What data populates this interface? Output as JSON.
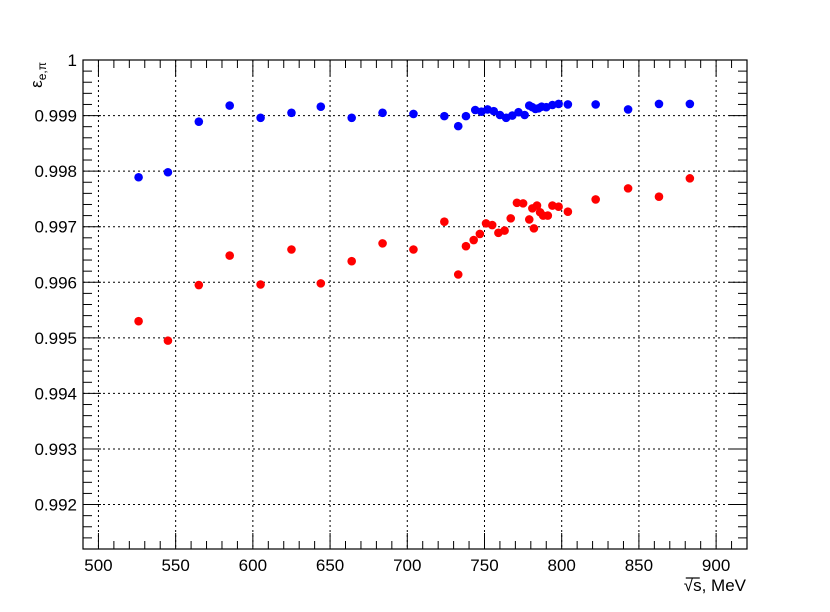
{
  "chart_data": {
    "type": "scatter",
    "title": "",
    "xlabel": "√s, MeV",
    "ylabel": "ε",
    "ylabel_subscript": "e,π",
    "xlim": [
      490,
      920
    ],
    "ylim": [
      0.9912,
      1.0
    ],
    "x_ticks": [
      500,
      550,
      600,
      650,
      700,
      750,
      800,
      850,
      900
    ],
    "x_tick_labels": [
      "500",
      "550",
      "600",
      "650",
      "700",
      "750",
      "800",
      "850",
      "900"
    ],
    "y_ticks": [
      0.992,
      0.993,
      0.994,
      0.995,
      0.996,
      0.997,
      0.998,
      0.999,
      1.0
    ],
    "y_tick_labels": [
      "0.992",
      "0.993",
      "0.994",
      "0.995",
      "0.996",
      "0.997",
      "0.998",
      "0.999",
      "1"
    ],
    "grid": true,
    "colors": {
      "blue": "#0000ff",
      "red": "#ff0000"
    },
    "series": [
      {
        "color": "#0000ff",
        "points": [
          [
            526,
            0.99789
          ],
          [
            545,
            0.99798
          ],
          [
            565,
            0.99889
          ],
          [
            585,
            0.99918
          ],
          [
            605,
            0.99896
          ],
          [
            625,
            0.99905
          ],
          [
            644,
            0.99916
          ],
          [
            664,
            0.99896
          ],
          [
            684,
            0.99905
          ],
          [
            704,
            0.99903
          ],
          [
            724,
            0.99899
          ],
          [
            733,
            0.99881
          ],
          [
            738,
            0.99899
          ],
          [
            744,
            0.9991
          ],
          [
            748,
            0.99907
          ],
          [
            752,
            0.99911
          ],
          [
            756,
            0.99908
          ],
          [
            760,
            0.99901
          ],
          [
            764,
            0.99896
          ],
          [
            768,
            0.999
          ],
          [
            772,
            0.99906
          ],
          [
            776,
            0.99901
          ],
          [
            779,
            0.99918
          ],
          [
            781,
            0.99915
          ],
          [
            783,
            0.99912
          ],
          [
            785,
            0.99913
          ],
          [
            787,
            0.99916
          ],
          [
            790,
            0.99915
          ],
          [
            794,
            0.99919
          ],
          [
            798,
            0.99921
          ],
          [
            804,
            0.9992
          ],
          [
            822,
            0.9992
          ],
          [
            843,
            0.99911
          ],
          [
            863,
            0.99921
          ],
          [
            883,
            0.99921
          ]
        ]
      },
      {
        "color": "#ff0000",
        "points": [
          [
            526,
            0.9953
          ],
          [
            545,
            0.99495
          ],
          [
            565,
            0.99595
          ],
          [
            585,
            0.99648
          ],
          [
            605,
            0.99596
          ],
          [
            625,
            0.99659
          ],
          [
            644,
            0.99598
          ],
          [
            664,
            0.99638
          ],
          [
            684,
            0.9967
          ],
          [
            704,
            0.99659
          ],
          [
            724,
            0.99709
          ],
          [
            733,
            0.99614
          ],
          [
            738,
            0.99665
          ],
          [
            743,
            0.99676
          ],
          [
            747,
            0.99687
          ],
          [
            751,
            0.99706
          ],
          [
            755,
            0.99703
          ],
          [
            759,
            0.99689
          ],
          [
            763,
            0.99693
          ],
          [
            767,
            0.99715
          ],
          [
            771,
            0.99743
          ],
          [
            775,
            0.99742
          ],
          [
            779,
            0.99713
          ],
          [
            781,
            0.99733
          ],
          [
            782,
            0.99697
          ],
          [
            784,
            0.99738
          ],
          [
            786,
            0.99726
          ],
          [
            788,
            0.9972
          ],
          [
            791,
            0.9972
          ],
          [
            794,
            0.99738
          ],
          [
            798,
            0.99736
          ],
          [
            804,
            0.99727
          ],
          [
            822,
            0.99749
          ],
          [
            843,
            0.99769
          ],
          [
            863,
            0.99754
          ],
          [
            883,
            0.99787
          ]
        ]
      }
    ]
  }
}
